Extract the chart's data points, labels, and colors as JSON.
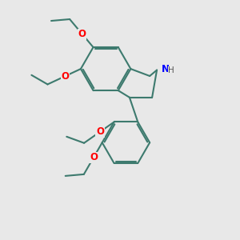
{
  "bg_color": "#e8e8e8",
  "bond_color": "#3d7a6e",
  "o_color": "#ff0000",
  "n_color": "#0000ff",
  "bond_width": 1.5,
  "font_size_atom": 8.5,
  "fig_size": [
    3.0,
    3.0
  ],
  "dpi": 100,
  "xlim": [
    0,
    10
  ],
  "ylim": [
    0,
    10
  ]
}
